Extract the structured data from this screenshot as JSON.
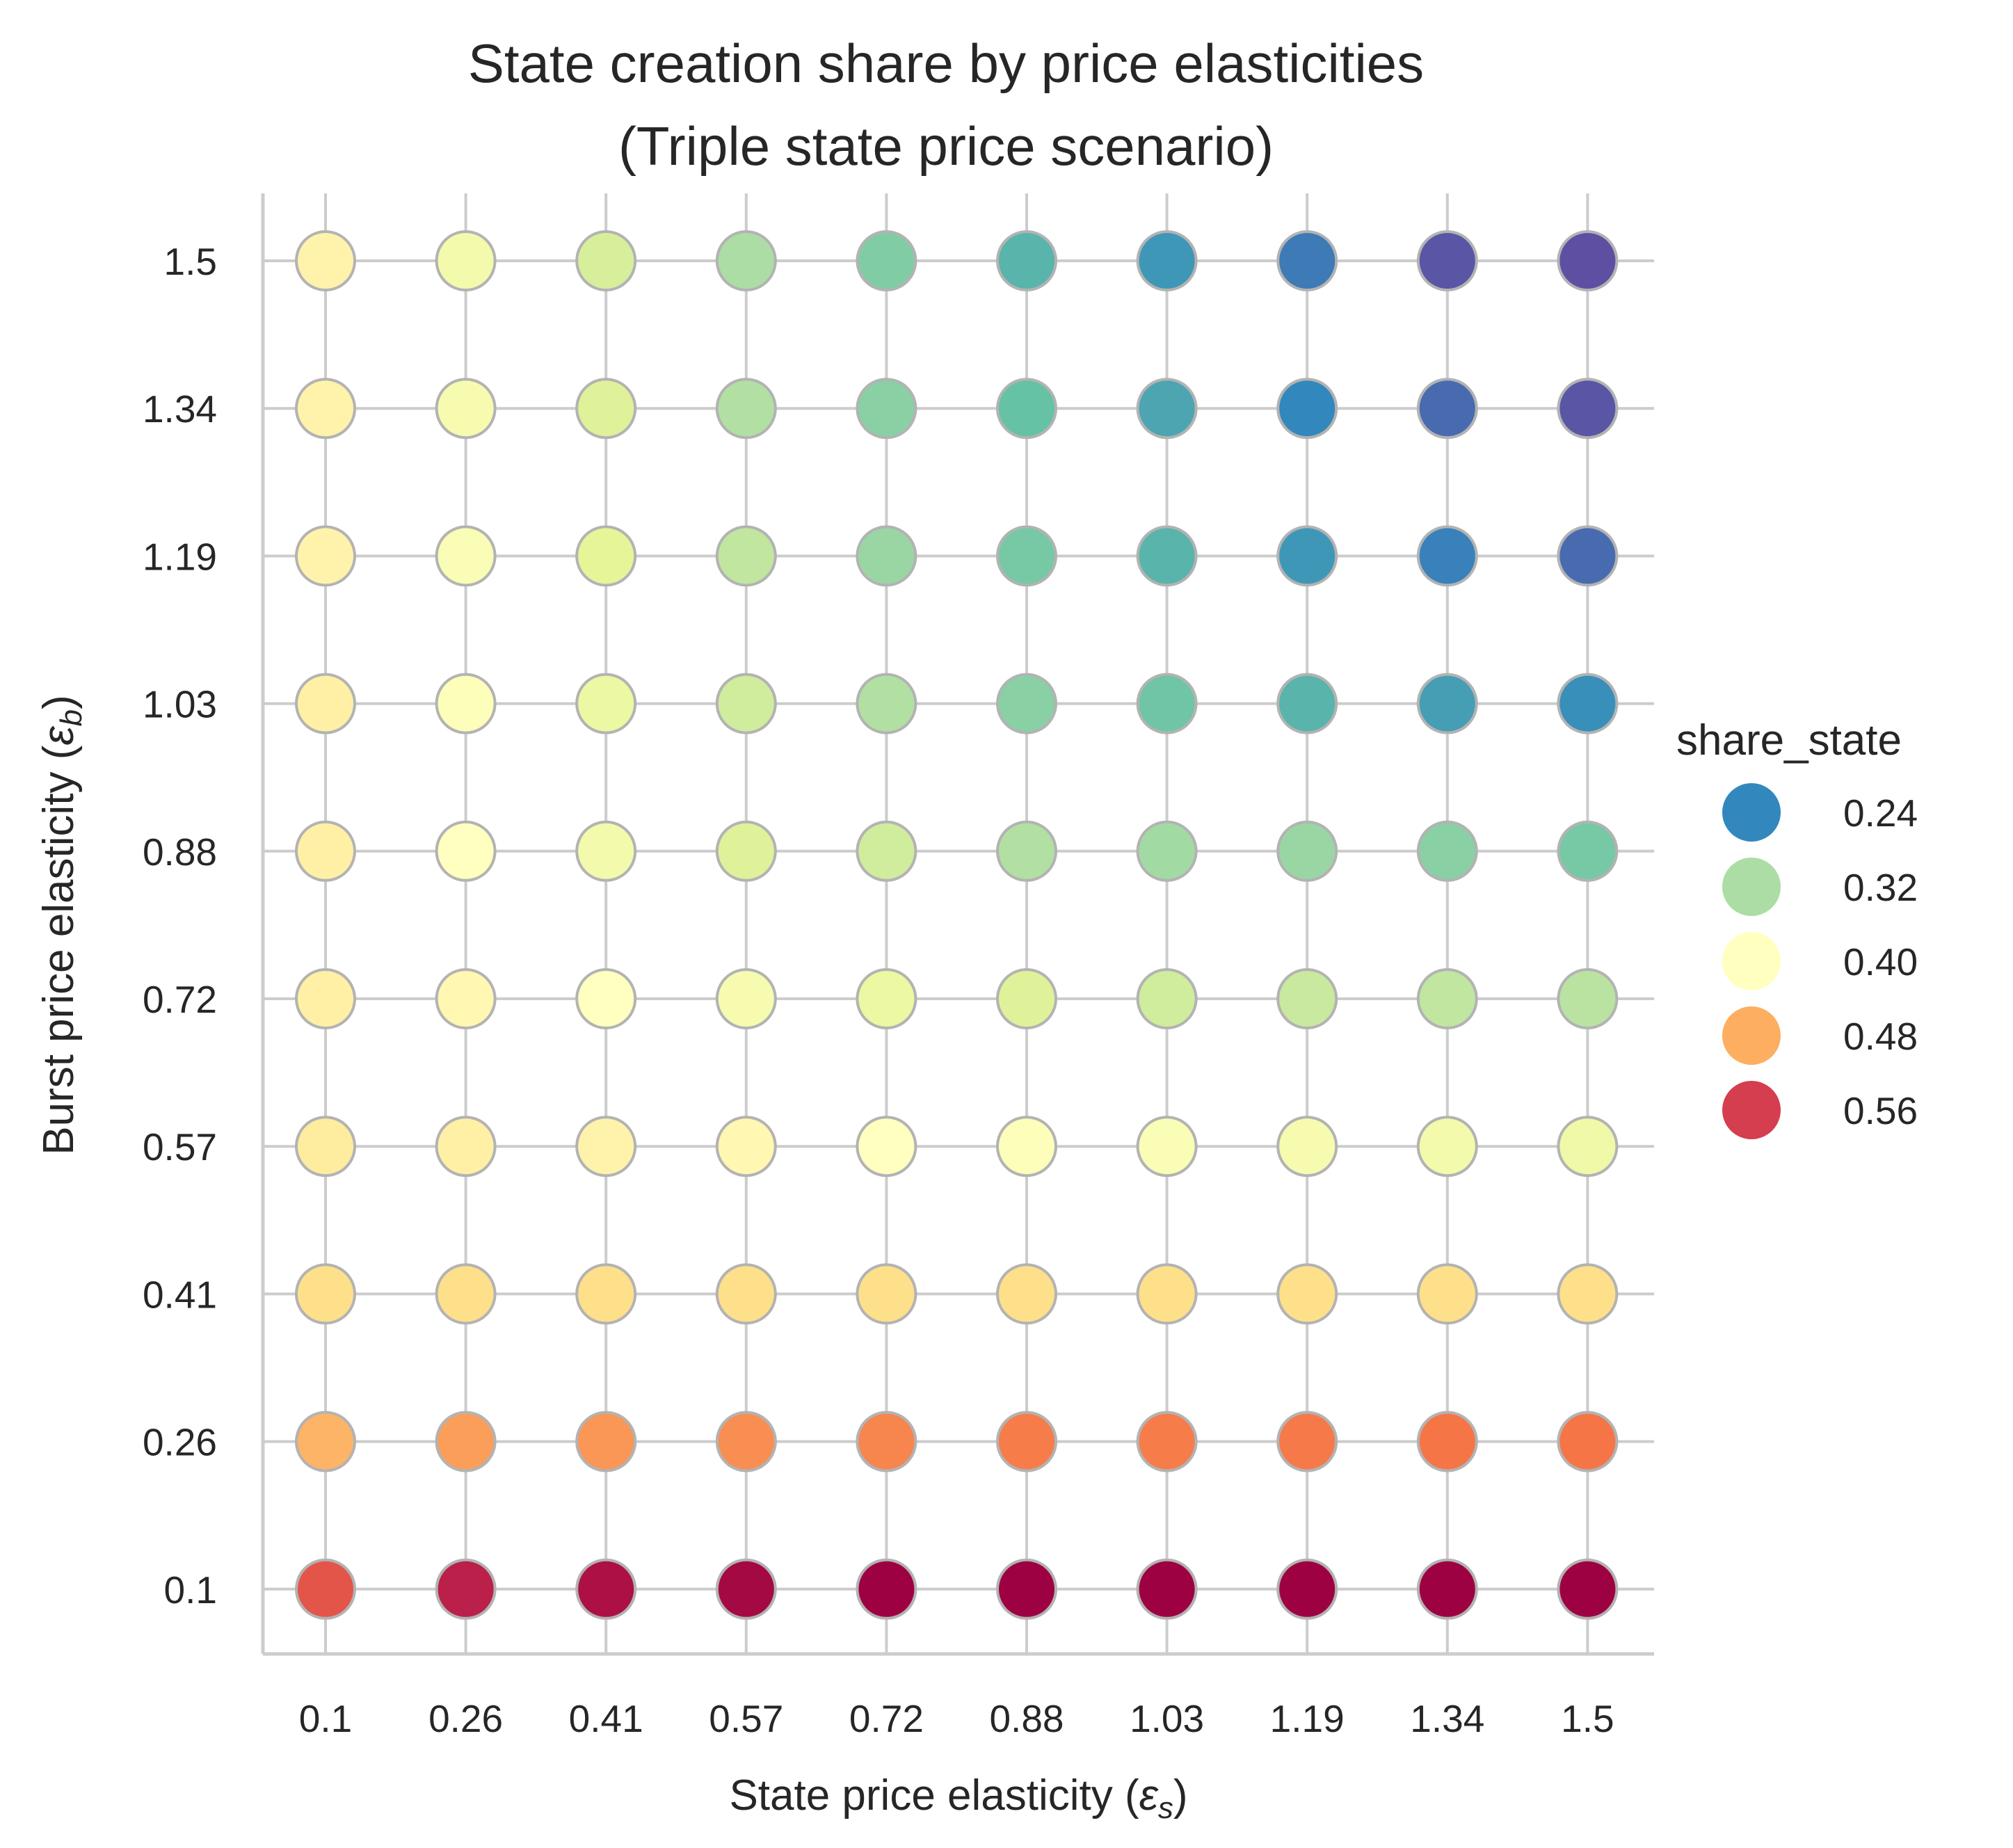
{
  "chart_data": {
    "type": "scatter",
    "title": [
      "State creation share by price elasticities",
      "(Triple state price scenario)"
    ],
    "xlabel": "State price elasticity",
    "xlabel_symbol": "ε",
    "xlabel_subscript": "s",
    "ylabel": "Burst price elasticity",
    "ylabel_symbol": "ε",
    "ylabel_subscript": "b",
    "x_categories": [
      "0.1",
      "0.26",
      "0.41",
      "0.57",
      "0.72",
      "0.88",
      "1.03",
      "1.19",
      "1.34",
      "1.5"
    ],
    "y_categories": [
      "0.1",
      "0.26",
      "0.41",
      "0.57",
      "0.72",
      "0.88",
      "1.03",
      "1.19",
      "1.34",
      "1.5"
    ],
    "hue": "share_state",
    "colormap": "Spectral",
    "color_range": [
      0.2,
      0.6
    ],
    "share_state": [
      [
        0.54,
        0.58,
        0.59,
        0.595,
        0.6,
        0.6,
        0.605,
        0.605,
        0.61,
        0.61
      ],
      [
        0.475,
        0.49,
        0.495,
        0.5,
        0.505,
        0.51,
        0.51,
        0.512,
        0.515,
        0.515
      ],
      [
        0.44,
        0.44,
        0.44,
        0.44,
        0.44,
        0.44,
        0.44,
        0.44,
        0.44,
        0.44
      ],
      [
        0.425,
        0.42,
        0.415,
        0.41,
        0.4,
        0.395,
        0.39,
        0.385,
        0.38,
        0.375
      ],
      [
        0.42,
        0.41,
        0.4,
        0.385,
        0.37,
        0.355,
        0.345,
        0.34,
        0.335,
        0.33
      ],
      [
        0.42,
        0.4,
        0.38,
        0.355,
        0.345,
        0.325,
        0.315,
        0.31,
        0.3,
        0.29
      ],
      [
        0.42,
        0.395,
        0.37,
        0.345,
        0.325,
        0.3,
        0.285,
        0.27,
        0.255,
        0.245
      ],
      [
        0.415,
        0.39,
        0.36,
        0.335,
        0.31,
        0.29,
        0.27,
        0.25,
        0.235,
        0.22
      ],
      [
        0.415,
        0.385,
        0.355,
        0.325,
        0.3,
        0.28,
        0.26,
        0.24,
        0.22,
        0.205
      ],
      [
        0.415,
        0.38,
        0.35,
        0.32,
        0.295,
        0.27,
        0.25,
        0.23,
        0.205,
        0.185
      ]
    ],
    "legend": {
      "title": "share_state",
      "position": "right",
      "entries": [
        {
          "label": "0.24",
          "value": 0.24
        },
        {
          "label": "0.32",
          "value": 0.32
        },
        {
          "label": "0.40",
          "value": 0.4
        },
        {
          "label": "0.48",
          "value": 0.48
        },
        {
          "label": "0.56",
          "value": 0.56
        }
      ]
    },
    "grid": true
  },
  "colors": {
    "grid": "#cccccc",
    "spine": "#cccccc",
    "marker_edge": "#b3b3b3",
    "text": "#262626",
    "background": "#ffffff"
  }
}
